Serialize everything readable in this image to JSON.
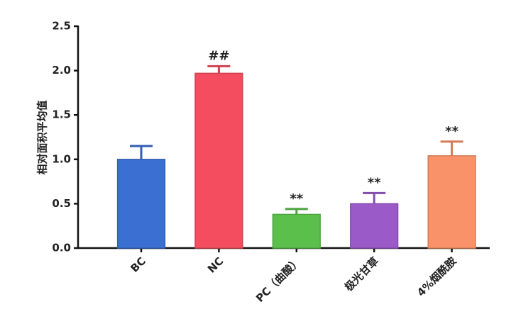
{
  "chart_data": {
    "type": "bar",
    "ylabel": "相对面积平均值",
    "categories": [
      "BC",
      "NC",
      "PC（曲酸）",
      "极光甘草",
      "4%烟酰胺"
    ],
    "values": [
      1.0,
      1.97,
      0.38,
      0.5,
      1.04
    ],
    "errors": [
      0.15,
      0.08,
      0.06,
      0.12,
      0.16
    ],
    "colors": [
      "#3b6fd1",
      "#f34d5f",
      "#5bc04b",
      "#9a5ac8",
      "#f99268"
    ],
    "annotations": [
      null,
      "##",
      "**",
      "**",
      "**"
    ],
    "ylim": [
      0,
      2.5
    ],
    "yticks": [
      {
        "value": 0,
        "label": "0.0"
      },
      0.5,
      {
        "value": 1,
        "label": "1.0"
      },
      1.5,
      {
        "value": 2,
        "label": "2.0"
      },
      2.5
    ]
  }
}
